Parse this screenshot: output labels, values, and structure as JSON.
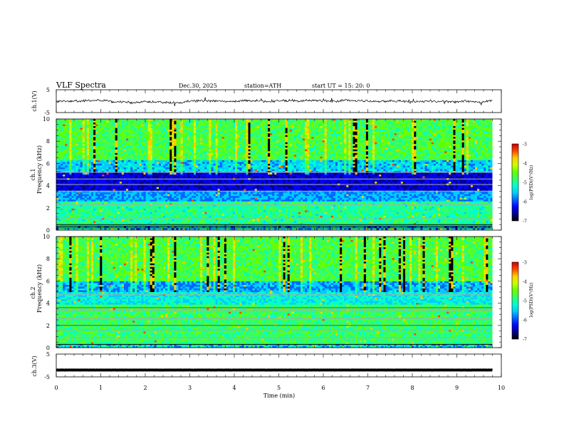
{
  "header": {
    "title": "VLF  Spectra",
    "date": "Dec.30, 2025",
    "station": "station=ATH",
    "start_ut": "start  UT  =    15: 20: 0"
  },
  "chart_data": [
    {
      "type": "line",
      "panel": "ch1-waveform",
      "ylabel": "ch.1(V)",
      "ylim": [
        -5,
        5
      ],
      "y_tick_labels": [
        "5",
        "-5"
      ],
      "baseline": 0.0,
      "note_color": "#000000"
    },
    {
      "type": "heatmap",
      "panel": "ch1-spectrogram",
      "ylabel": "ch.1\nFrequency (kHz)",
      "ylabel_lines": [
        "ch.1",
        "Frequency  (kHz)"
      ],
      "ylim": [
        0,
        10
      ],
      "y_tick_labels": [
        "0",
        "2",
        "4",
        "6",
        "8",
        "10"
      ],
      "colorbar": {
        "label": "log(PSD)(V²/Hz)",
        "range": [
          -7,
          -3
        ],
        "tick_labels": [
          "-3",
          "-4",
          "-5",
          "-6",
          "-7"
        ]
      }
    },
    {
      "type": "heatmap",
      "panel": "ch2-spectrogram",
      "ylabel_lines": [
        "ch.2",
        "Frequency  (kHz)"
      ],
      "ylim": [
        0,
        10
      ],
      "y_tick_labels": [
        "0",
        "2",
        "4",
        "6",
        "8",
        "10"
      ],
      "colorbar": {
        "label": "log(PSD)(V²/Hz)",
        "range": [
          -7,
          -3
        ],
        "tick_labels": [
          "-3",
          "-4",
          "-5",
          "-6",
          "-7"
        ]
      }
    },
    {
      "type": "line",
      "panel": "ch3-waveform",
      "ylabel": "ch.3(V)",
      "ylim": [
        -5,
        5
      ],
      "y_tick_labels": [
        "5",
        "-5"
      ],
      "baseline": -2.0
    }
  ],
  "x_axis": {
    "xlabel": "Time  (min)",
    "xlim": [
      0,
      10
    ],
    "tick_labels": [
      "0",
      "1",
      "2",
      "3",
      "4",
      "5",
      "6",
      "7",
      "8",
      "9",
      "10"
    ],
    "data_end": 9.8
  },
  "colormap": [
    "#000000",
    "#00008b",
    "#0000ff",
    "#0066ff",
    "#00ccff",
    "#00ffcc",
    "#33ff66",
    "#66ff00",
    "#ccff00",
    "#ffcc00",
    "#ff4400",
    "#cc0000",
    "#ffffff"
  ]
}
